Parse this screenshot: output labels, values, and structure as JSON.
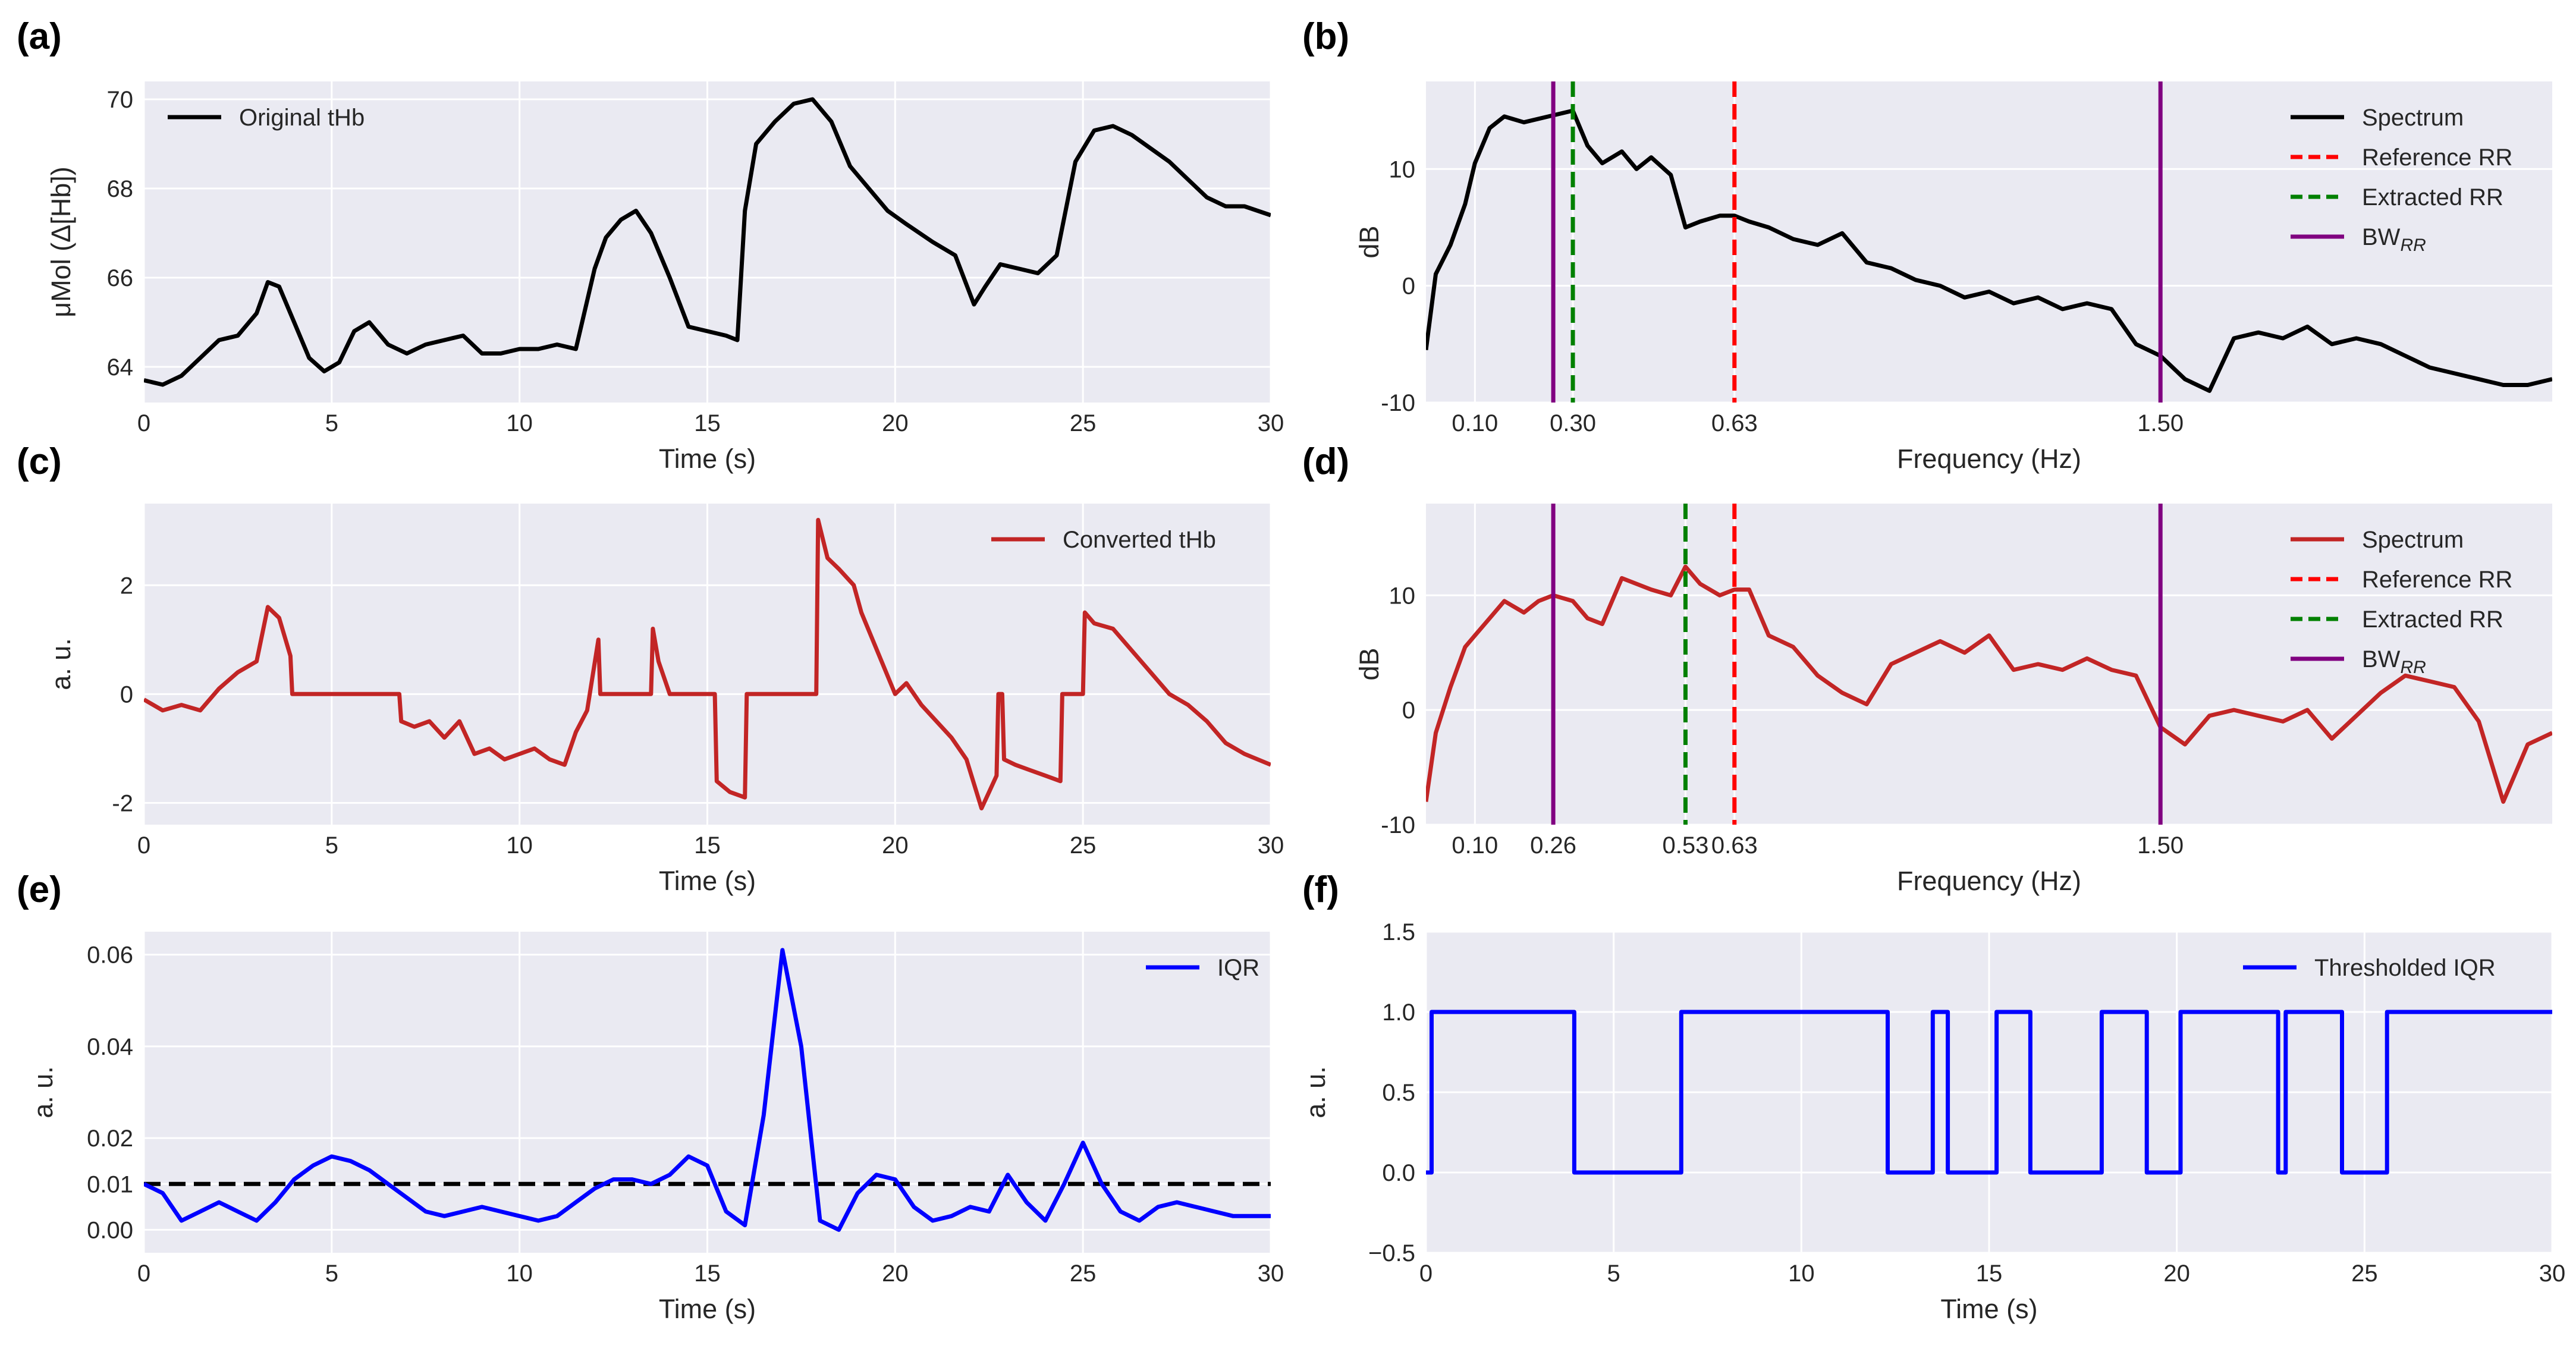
{
  "chart_data": [
    {
      "panel": "(a)",
      "type": "line",
      "xlabel": "Time (s)",
      "ylabel": "μMol (Δ[Hb])",
      "xlim": [
        0,
        30
      ],
      "ylim": [
        63.2,
        70.4
      ],
      "xticks": [
        0,
        5,
        10,
        15,
        20,
        25,
        30
      ],
      "yticks": [
        64,
        66,
        68,
        70
      ],
      "grid": true,
      "legend": "top-left",
      "colors": {
        "main": "#000000"
      },
      "series": [
        {
          "name": "Original tHb",
          "color": "#000000",
          "x": [
            0,
            0.5,
            1,
            1.5,
            2,
            2.5,
            3,
            3.3,
            3.6,
            4,
            4.4,
            4.8,
            5.2,
            5.6,
            6,
            6.5,
            7,
            7.5,
            8,
            8.5,
            9,
            9.5,
            10,
            10.5,
            11,
            11.5,
            12,
            12.3,
            12.7,
            13.1,
            13.5,
            14,
            14.5,
            15,
            15.5,
            15.8,
            16,
            16.3,
            16.8,
            17.3,
            17.8,
            18.3,
            18.8,
            19.3,
            19.8,
            20.3,
            21,
            21.6,
            22.1,
            22.4,
            22.8,
            23.3,
            23.8,
            24.3,
            24.8,
            25.3,
            25.8,
            26.3,
            26.8,
            27.3,
            27.8,
            28.3,
            28.8,
            29.3,
            30
          ],
          "y": [
            63.7,
            63.6,
            63.8,
            64.2,
            64.6,
            64.7,
            65.2,
            65.9,
            65.8,
            65.0,
            64.2,
            63.9,
            64.1,
            64.8,
            65.0,
            64.5,
            64.3,
            64.5,
            64.6,
            64.7,
            64.3,
            64.3,
            64.4,
            64.4,
            64.5,
            64.4,
            66.2,
            66.9,
            67.3,
            67.5,
            67.0,
            66.0,
            64.9,
            64.8,
            64.7,
            64.6,
            67.5,
            69.0,
            69.5,
            69.9,
            70.0,
            69.5,
            68.5,
            68.0,
            67.5,
            67.2,
            66.8,
            66.5,
            65.4,
            65.8,
            66.3,
            66.2,
            66.1,
            66.5,
            68.6,
            69.3,
            69.4,
            69.2,
            68.9,
            68.6,
            68.2,
            67.8,
            67.6,
            67.6,
            67.4
          ]
        }
      ]
    },
    {
      "panel": "(b)",
      "type": "line",
      "xlabel": "Frequency (Hz)",
      "ylabel": "dB",
      "xlim": [
        0,
        2.3
      ],
      "ylim": [
        -10,
        17.5
      ],
      "xticks": [
        0.1,
        0.3,
        0.63,
        1.5
      ],
      "xtick_labels": [
        "0.10",
        "0.30",
        "0.63",
        "1.50"
      ],
      "yticks": [
        -10,
        0,
        10
      ],
      "grid": true,
      "legend": "top-right",
      "series": [
        {
          "name": "Spectrum",
          "color": "#000000",
          "x": [
            0,
            0.02,
            0.05,
            0.08,
            0.1,
            0.13,
            0.16,
            0.2,
            0.25,
            0.3,
            0.33,
            0.36,
            0.4,
            0.43,
            0.46,
            0.5,
            0.53,
            0.56,
            0.6,
            0.63,
            0.66,
            0.7,
            0.75,
            0.8,
            0.85,
            0.9,
            0.95,
            1.0,
            1.05,
            1.1,
            1.15,
            1.2,
            1.25,
            1.3,
            1.35,
            1.4,
            1.45,
            1.5,
            1.55,
            1.6,
            1.65,
            1.7,
            1.75,
            1.8,
            1.85,
            1.9,
            1.95,
            2.0,
            2.05,
            2.1,
            2.15,
            2.2,
            2.25,
            2.3
          ],
          "y": [
            -5.5,
            1.0,
            3.5,
            7.0,
            10.5,
            13.5,
            14.5,
            14.0,
            14.5,
            15.0,
            12.0,
            10.5,
            11.5,
            10.0,
            11.0,
            9.5,
            5.0,
            5.5,
            6.0,
            6.0,
            5.5,
            5.0,
            4.0,
            3.5,
            4.5,
            2.0,
            1.5,
            0.5,
            0.0,
            -1.0,
            -0.5,
            -1.5,
            -1.0,
            -2.0,
            -1.5,
            -2.0,
            -5.0,
            -6.0,
            -8.0,
            -9.0,
            -4.5,
            -4.0,
            -4.5,
            -3.5,
            -5.0,
            -4.5,
            -5.0,
            -6.0,
            -7.0,
            -7.5,
            -8.0,
            -8.5,
            -8.5,
            -8.0
          ]
        },
        {
          "name": "Reference RR",
          "color": "#ff0000",
          "style": "dashed",
          "x_value": 0.63
        },
        {
          "name": "Extracted RR",
          "color": "#008000",
          "style": "dashed",
          "x_value": 0.3
        },
        {
          "name": "BW",
          "name_subscript": "RR",
          "color": "#800080",
          "style": "solid",
          "x_values": [
            0.26,
            1.5
          ]
        }
      ]
    },
    {
      "panel": "(c)",
      "type": "line",
      "xlabel": "Time (s)",
      "ylabel": "a. u.",
      "xlim": [
        0,
        30
      ],
      "ylim": [
        -2.4,
        3.5
      ],
      "xticks": [
        0,
        5,
        10,
        15,
        20,
        25,
        30
      ],
      "yticks": [
        -2,
        0,
        2
      ],
      "grid": true,
      "legend": "top-right",
      "series": [
        {
          "name": "Converted tHb",
          "color": "#c22525",
          "x": [
            0,
            0.5,
            1,
            1.5,
            2,
            2.5,
            3,
            3.3,
            3.6,
            3.9,
            3.95,
            6.8,
            6.85,
            7.2,
            7.6,
            8,
            8.4,
            8.8,
            9.2,
            9.6,
            10,
            10.4,
            10.8,
            11.2,
            11.5,
            11.8,
            12.1,
            12.15,
            12.25,
            12.3,
            13.5,
            13.55,
            13.7,
            13.9,
            14.0,
            15.2,
            15.25,
            15.6,
            16.0,
            16.05,
            17.9,
            17.95,
            18.2,
            18.5,
            18.9,
            19.1,
            20.0,
            20.3,
            20.7,
            21.1,
            21.5,
            21.9,
            22.3,
            22.5,
            22.7,
            22.75,
            22.85,
            22.9,
            23.2,
            23.6,
            24.0,
            24.4,
            24.45,
            25.0,
            25.05,
            25.3,
            25.8,
            26.3,
            26.8,
            27.3,
            27.8,
            28.3,
            28.8,
            29.3,
            30
          ],
          "y": [
            -0.1,
            -0.3,
            -0.2,
            -0.3,
            0.1,
            0.4,
            0.6,
            1.6,
            1.4,
            0.7,
            0.0,
            0.0,
            -0.5,
            -0.6,
            -0.5,
            -0.8,
            -0.5,
            -1.1,
            -1.0,
            -1.2,
            -1.1,
            -1.0,
            -1.2,
            -1.3,
            -0.7,
            -0.3,
            1.0,
            0.0,
            0.0,
            0.0,
            0.0,
            1.2,
            0.6,
            0.2,
            0.0,
            0.0,
            -1.6,
            -1.8,
            -1.9,
            0.0,
            0.0,
            3.2,
            2.5,
            2.3,
            2.0,
            1.5,
            0.0,
            0.2,
            -0.2,
            -0.5,
            -0.8,
            -1.2,
            -2.1,
            -1.8,
            -1.5,
            0.0,
            0.0,
            -1.2,
            -1.3,
            -1.4,
            -1.5,
            -1.6,
            0.0,
            0.0,
            1.5,
            1.3,
            1.2,
            0.8,
            0.4,
            0.0,
            -0.2,
            -0.5,
            -0.9,
            -1.1,
            -1.3
          ]
        }
      ]
    },
    {
      "panel": "(d)",
      "type": "line",
      "xlabel": "Frequency (Hz)",
      "ylabel": "dB",
      "xlim": [
        0,
        2.3
      ],
      "ylim": [
        -10,
        18
      ],
      "xticks": [
        0.1,
        0.26,
        0.53,
        0.63,
        1.5
      ],
      "xtick_labels": [
        "0.10",
        "0.26",
        "0.53",
        "0.63",
        "1.50"
      ],
      "yticks": [
        -10,
        0,
        10
      ],
      "grid": true,
      "legend": "top-right",
      "series": [
        {
          "name": "Spectrum",
          "color": "#c22525",
          "x": [
            0,
            0.02,
            0.05,
            0.08,
            0.1,
            0.13,
            0.16,
            0.2,
            0.23,
            0.26,
            0.3,
            0.33,
            0.36,
            0.4,
            0.43,
            0.46,
            0.5,
            0.53,
            0.56,
            0.6,
            0.63,
            0.66,
            0.7,
            0.75,
            0.8,
            0.85,
            0.9,
            0.95,
            1.0,
            1.05,
            1.1,
            1.15,
            1.2,
            1.25,
            1.3,
            1.35,
            1.4,
            1.45,
            1.5,
            1.55,
            1.6,
            1.65,
            1.7,
            1.75,
            1.8,
            1.85,
            1.9,
            1.95,
            2.0,
            2.05,
            2.1,
            2.15,
            2.2,
            2.25,
            2.3
          ],
          "y": [
            -8.0,
            -2.0,
            2.0,
            5.5,
            6.5,
            8.0,
            9.5,
            8.5,
            9.5,
            10.0,
            9.5,
            8.0,
            7.5,
            11.5,
            11.0,
            10.5,
            10.0,
            12.5,
            11.0,
            10.0,
            10.5,
            10.5,
            6.5,
            5.5,
            3.0,
            1.5,
            0.5,
            4.0,
            5.0,
            6.0,
            5.0,
            6.5,
            3.5,
            4.0,
            3.5,
            4.5,
            3.5,
            3.0,
            -1.5,
            -3.0,
            -0.5,
            0.0,
            -0.5,
            -1.0,
            0.0,
            -2.5,
            -0.5,
            1.5,
            3.0,
            2.5,
            2.0,
            -1.0,
            -8.0,
            -3.0,
            -2.0
          ]
        },
        {
          "name": "Reference RR",
          "color": "#ff0000",
          "style": "dashed",
          "x_value": 0.63
        },
        {
          "name": "Extracted RR",
          "color": "#008000",
          "style": "dashed",
          "x_value": 0.53
        },
        {
          "name": "BW",
          "name_subscript": "RR",
          "color": "#800080",
          "style": "solid",
          "x_values": [
            0.26,
            1.5
          ]
        }
      ]
    },
    {
      "panel": "(e)",
      "type": "line",
      "xlabel": "Time (s)",
      "ylabel": "a. u.",
      "xlim": [
        0,
        30
      ],
      "ylim": [
        -0.005,
        0.065
      ],
      "xticks": [
        0,
        5,
        10,
        15,
        20,
        25,
        30
      ],
      "yticks": [
        0.0,
        0.01,
        0.02,
        0.04,
        0.06
      ],
      "ytick_labels": [
        "0.00",
        "0.01",
        "0.02",
        "0.04",
        "0.06"
      ],
      "grid": true,
      "legend": "top-right",
      "threshold": 0.01,
      "series": [
        {
          "name": "IQR",
          "color": "#0000ff",
          "x": [
            0,
            0.5,
            1,
            1.5,
            2,
            2.5,
            3,
            3.5,
            4,
            4.5,
            5,
            5.5,
            6,
            6.5,
            7,
            7.5,
            8,
            8.5,
            9,
            9.5,
            10,
            10.5,
            11,
            11.5,
            12,
            12.5,
            13,
            13.5,
            14,
            14.5,
            15,
            15.5,
            16,
            16.5,
            17,
            17.5,
            18,
            18.5,
            19,
            19.5,
            20,
            20.5,
            21,
            21.5,
            22,
            22.5,
            23,
            23.5,
            24,
            24.5,
            25,
            25.5,
            26,
            26.5,
            27,
            27.5,
            28,
            28.5,
            29,
            29.5,
            30
          ],
          "y": [
            0.01,
            0.008,
            0.002,
            0.004,
            0.006,
            0.004,
            0.002,
            0.006,
            0.011,
            0.014,
            0.016,
            0.015,
            0.013,
            0.01,
            0.007,
            0.004,
            0.003,
            0.004,
            0.005,
            0.004,
            0.003,
            0.002,
            0.003,
            0.006,
            0.009,
            0.011,
            0.011,
            0.01,
            0.012,
            0.016,
            0.014,
            0.004,
            0.001,
            0.025,
            0.061,
            0.04,
            0.002,
            0.0,
            0.008,
            0.012,
            0.011,
            0.005,
            0.002,
            0.003,
            0.005,
            0.004,
            0.012,
            0.006,
            0.002,
            0.01,
            0.019,
            0.01,
            0.004,
            0.002,
            0.005,
            0.006,
            0.005,
            0.004,
            0.003,
            0.003,
            0.003
          ]
        }
      ]
    },
    {
      "panel": "(f)",
      "type": "line",
      "xlabel": "Time (s)",
      "ylabel": "a. u.",
      "xlim": [
        0,
        30
      ],
      "ylim": [
        -0.5,
        1.5
      ],
      "xticks": [
        0,
        5,
        10,
        15,
        20,
        25,
        30
      ],
      "yticks": [
        -0.5,
        0.0,
        0.5,
        1.0,
        1.5
      ],
      "ytick_labels": [
        "−0.5",
        "0.0",
        "0.5",
        "1.0",
        "1.5"
      ],
      "grid": true,
      "legend": "top-right",
      "series": [
        {
          "name": "Thresholded IQR",
          "color": "#0000ff",
          "step": true,
          "x": [
            0,
            0.15,
            0.15,
            3.95,
            3.95,
            6.8,
            6.8,
            12.3,
            12.3,
            13.5,
            13.5,
            13.9,
            13.9,
            15.2,
            15.2,
            16.1,
            16.1,
            18.0,
            18.0,
            19.2,
            19.2,
            20.1,
            20.1,
            22.7,
            22.7,
            22.9,
            22.9,
            24.4,
            24.4,
            25.6,
            25.6,
            30
          ],
          "y": [
            0,
            0,
            1,
            1,
            0,
            0,
            1,
            1,
            0,
            0,
            1,
            1,
            0,
            0,
            1,
            1,
            0,
            0,
            1,
            1,
            0,
            0,
            1,
            1,
            0,
            0,
            1,
            1,
            0,
            0,
            1,
            1
          ]
        }
      ]
    }
  ],
  "panel_labels": [
    "(a)",
    "(b)",
    "(c)",
    "(d)",
    "(e)",
    "(f)"
  ]
}
